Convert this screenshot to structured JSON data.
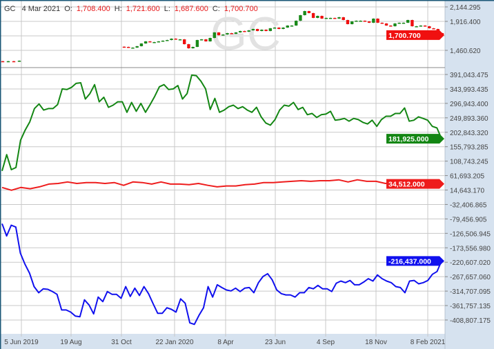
{
  "header": {
    "symbol": "GC",
    "date": "4 Mar 2021",
    "open_label": "O:",
    "open": "1,708.400",
    "high_label": "H:",
    "high": "1,721.600",
    "low_label": "L:",
    "low": "1,687.600",
    "close_label": "C:",
    "close": "1,700.700"
  },
  "watermark": "GC",
  "colors": {
    "up": "#1a8a1a",
    "down": "#f01010",
    "series_green": "#138613",
    "series_red": "#ee1c1c",
    "series_blue": "#1010ee",
    "axis_bg": "#d6e2ef",
    "grid": "#c8c8c8",
    "border": "#1d5878"
  },
  "chart_data": [
    {
      "type": "candlestick",
      "title": "GC",
      "y_ticks": [
        "2,144.295",
        "1,916.400",
        "1,460.620"
      ],
      "ylim": [
        1460.62,
        2144.295
      ],
      "last_value_tag": "1,700.700",
      "closes_segments": [
        [
          1287,
          1290,
          1285,
          1298
        ],
        [
          1515,
          1504,
          1504,
          1526,
          1569,
          1602,
          1591,
          1591,
          1602,
          1613,
          1623,
          1645,
          1634,
          1634,
          1558,
          1493,
          1515,
          1623,
          1634,
          1602,
          1656,
          1743,
          1699,
          1710,
          1732,
          1721,
          1743,
          1765,
          1754,
          1775,
          1797,
          1765,
          1786,
          1765,
          1808,
          1819,
          1797,
          1819,
          1851,
          1851,
          1927,
          2014,
          2079,
          2047,
          1971,
          2003,
          1960,
          1971,
          1971,
          1960,
          1982,
          1938,
          1873,
          1916,
          1927,
          1927,
          1916,
          1895,
          1960,
          1895,
          1884,
          1851,
          1840,
          1884,
          1895,
          1895,
          1938,
          1840,
          1840,
          1851,
          1840,
          1808,
          1797,
          1732,
          1700.7
        ]
      ]
    },
    {
      "type": "line",
      "x_ticks": [
        "5 Jun 2019",
        "19 Aug",
        "31 Oct",
        "22 Jan 2020",
        "8 Apr",
        "23 Jun",
        "4 Sep",
        "18 Nov",
        "8 Feb 2021"
      ],
      "y_ticks": [
        "391,043.475",
        "343,993.435",
        "296,943.400",
        "249,893.360",
        "202,843.320",
        "155,793.285",
        "108,743.245",
        "61,693.205",
        "14,643.170",
        "-32,406.865",
        "-79,456.905",
        "-126,506.945",
        "-173,556.980",
        "-220,607.020",
        "-267,657.060",
        "-314,707.095",
        "-361,757.135",
        "-408,807.175"
      ],
      "ylim": [
        -408807.175,
        391043.475
      ],
      "grid": true,
      "series": [
        {
          "color": "green",
          "last_value_tag": "181,925.000",
          "values": [
            77000,
            130000,
            81000,
            88000,
            177000,
            210000,
            237000,
            280000,
            295000,
            275000,
            280000,
            280000,
            293000,
            344000,
            342000,
            349000,
            362000,
            364000,
            311000,
            329000,
            358000,
            302000,
            317000,
            284000,
            291000,
            302000,
            302000,
            268000,
            300000,
            271000,
            297000,
            268000,
            293000,
            320000,
            351000,
            358000,
            342000,
            344000,
            355000,
            311000,
            329000,
            389000,
            387000,
            369000,
            344000,
            277000,
            313000,
            268000,
            275000,
            286000,
            291000,
            280000,
            286000,
            275000,
            268000,
            284000,
            253000,
            233000,
            226000,
            244000,
            275000,
            291000,
            288000,
            300000,
            277000,
            284000,
            260000,
            264000,
            251000,
            260000,
            262000,
            271000,
            242000,
            244000,
            248000,
            239000,
            248000,
            244000,
            235000,
            230000,
            242000,
            222000,
            244000,
            255000,
            255000,
            264000,
            264000,
            282000,
            239000,
            242000,
            253000,
            248000,
            242000,
            222000,
            217000,
            181925
          ]
        },
        {
          "color": "red",
          "last_value_tag": "34,512.000",
          "values": [
            23000,
            14000,
            23000,
            19000,
            25000,
            34000,
            36000,
            41000,
            36000,
            39000,
            39000,
            36000,
            39000,
            30000,
            41000,
            39000,
            34000,
            41000,
            34000,
            34000,
            32000,
            36000,
            30000,
            25000,
            28000,
            28000,
            32000,
            34000,
            39000,
            39000,
            41000,
            43000,
            45000,
            43000,
            45000,
            45000,
            48000,
            41000,
            48000,
            43000,
            43000,
            36000,
            41000,
            43000,
            45000,
            43000,
            43000,
            34512
          ]
        },
        {
          "color": "blue",
          "last_value_tag": "-216,437.000",
          "values": [
            -95000,
            -135000,
            -100000,
            -106000,
            -191000,
            -227000,
            -256000,
            -300000,
            -320000,
            -307000,
            -309000,
            -316000,
            -325000,
            -376000,
            -376000,
            -383000,
            -396000,
            -398000,
            -343000,
            -360000,
            -389000,
            -334000,
            -349000,
            -316000,
            -325000,
            -325000,
            -338000,
            -300000,
            -332000,
            -305000,
            -329000,
            -300000,
            -323000,
            -356000,
            -387000,
            -387000,
            -369000,
            -374000,
            -383000,
            -340000,
            -354000,
            -418000,
            -423000,
            -394000,
            -369000,
            -300000,
            -334000,
            -294000,
            -303000,
            -311000,
            -314000,
            -305000,
            -316000,
            -305000,
            -303000,
            -320000,
            -287000,
            -267000,
            -258000,
            -278000,
            -311000,
            -323000,
            -327000,
            -327000,
            -334000,
            -320000,
            -320000,
            -303000,
            -307000,
            -296000,
            -307000,
            -307000,
            -316000,
            -289000,
            -282000,
            -287000,
            -280000,
            -294000,
            -294000,
            -285000,
            -274000,
            -282000,
            -262000,
            -274000,
            -282000,
            -287000,
            -300000,
            -303000,
            -320000,
            -282000,
            -280000,
            -291000,
            -287000,
            -280000,
            -260000,
            -251000,
            -216437
          ]
        }
      ]
    }
  ]
}
